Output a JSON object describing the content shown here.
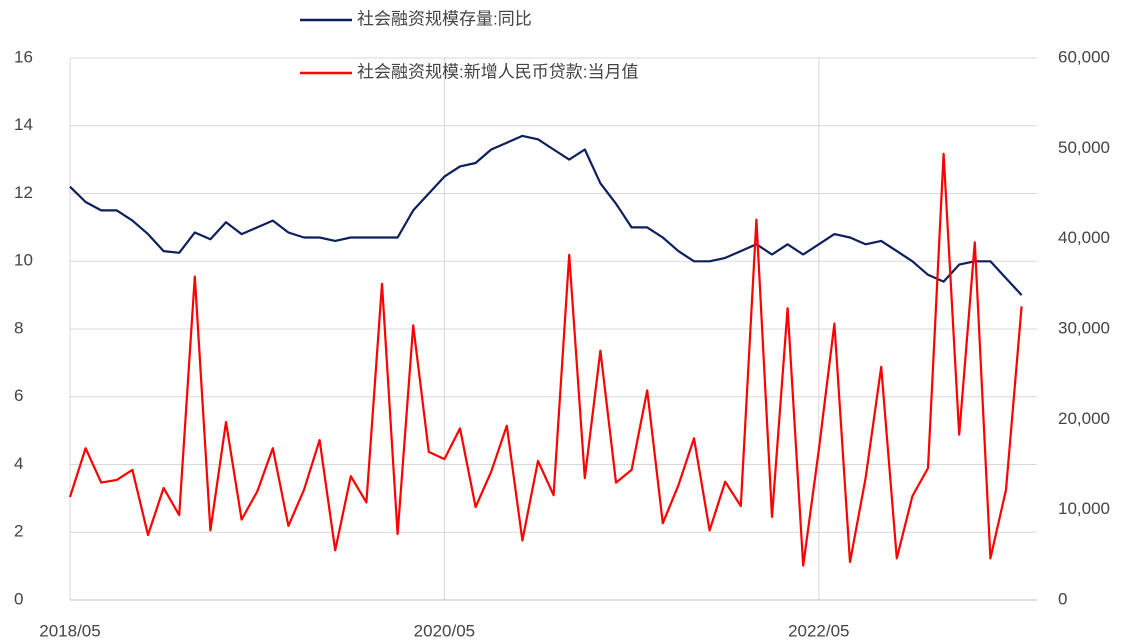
{
  "chart_data": {
    "type": "line",
    "categories": [
      "2018/05",
      null,
      null,
      null,
      null,
      null,
      null,
      null,
      null,
      null,
      null,
      null,
      null,
      null,
      null,
      null,
      null,
      null,
      null,
      null,
      null,
      null,
      null,
      null,
      "2020/05",
      null,
      null,
      null,
      null,
      null,
      null,
      null,
      null,
      null,
      null,
      null,
      null,
      null,
      null,
      null,
      null,
      null,
      null,
      null,
      null,
      null,
      null,
      null,
      "2022/05",
      null,
      null,
      null,
      null,
      null,
      null,
      null,
      null,
      null,
      null,
      null,
      null,
      null
    ],
    "series": [
      {
        "name": "社会融资规模存量:同比",
        "color": "#0d1f5c",
        "axis": "y",
        "values": [
          12.2,
          11.75,
          11.5,
          11.5,
          11.2,
          10.8,
          10.3,
          10.25,
          10.85,
          10.65,
          11.15,
          10.8,
          11.0,
          11.2,
          10.85,
          10.7,
          10.7,
          10.6,
          10.7,
          10.7,
          10.7,
          10.7,
          11.5,
          12.0,
          12.5,
          12.8,
          12.9,
          13.3,
          13.5,
          13.7,
          13.6,
          13.3,
          13.0,
          13.3,
          12.3,
          11.7,
          11.0,
          11.0,
          10.7,
          10.3,
          10.0,
          10.0,
          10.1,
          10.3,
          10.5,
          10.2,
          10.5,
          10.2,
          10.5,
          10.8,
          10.7,
          10.5,
          10.6,
          10.3,
          10.0,
          9.6,
          9.4,
          9.9,
          10.0,
          10.0,
          9.5,
          9.0
        ]
      },
      {
        "name": "社会融资规模:新增人民币贷款:当月值",
        "color": "#ff0000",
        "axis": "y2",
        "values": [
          11400,
          16800,
          13000,
          13300,
          14400,
          7200,
          12400,
          9400,
          35800,
          7700,
          19700,
          8900,
          12000,
          16800,
          8200,
          12200,
          17700,
          5500,
          13700,
          10800,
          35000,
          7300,
          30400,
          16400,
          15600,
          19000,
          10300,
          14200,
          19300,
          6600,
          15400,
          11600,
          38200,
          13500,
          27600,
          13000,
          14400,
          23200,
          8500,
          12700,
          17900,
          7700,
          13100,
          10400,
          42100,
          9200,
          32300,
          3800,
          16600,
          30600,
          4200,
          13500,
          25800,
          4600,
          11500,
          14600,
          49400,
          18300,
          39600,
          4600,
          12200,
          32500
        ]
      }
    ],
    "ylim": [
      0,
      16
    ],
    "yticks": [
      0,
      2,
      4,
      6,
      8,
      10,
      12,
      14,
      16
    ],
    "y2lim": [
      0,
      60000
    ],
    "y2ticks": [
      0,
      {
        "value": 10000,
        "label": "10,000"
      },
      {
        "value": 20000,
        "label": "20,000"
      },
      {
        "value": 30000,
        "label": "30,000"
      },
      {
        "value": 40000,
        "label": "40,000"
      },
      {
        "value": 50000,
        "label": "50,000"
      },
      {
        "value": 60000,
        "label": "60,000"
      }
    ],
    "grid": true
  }
}
